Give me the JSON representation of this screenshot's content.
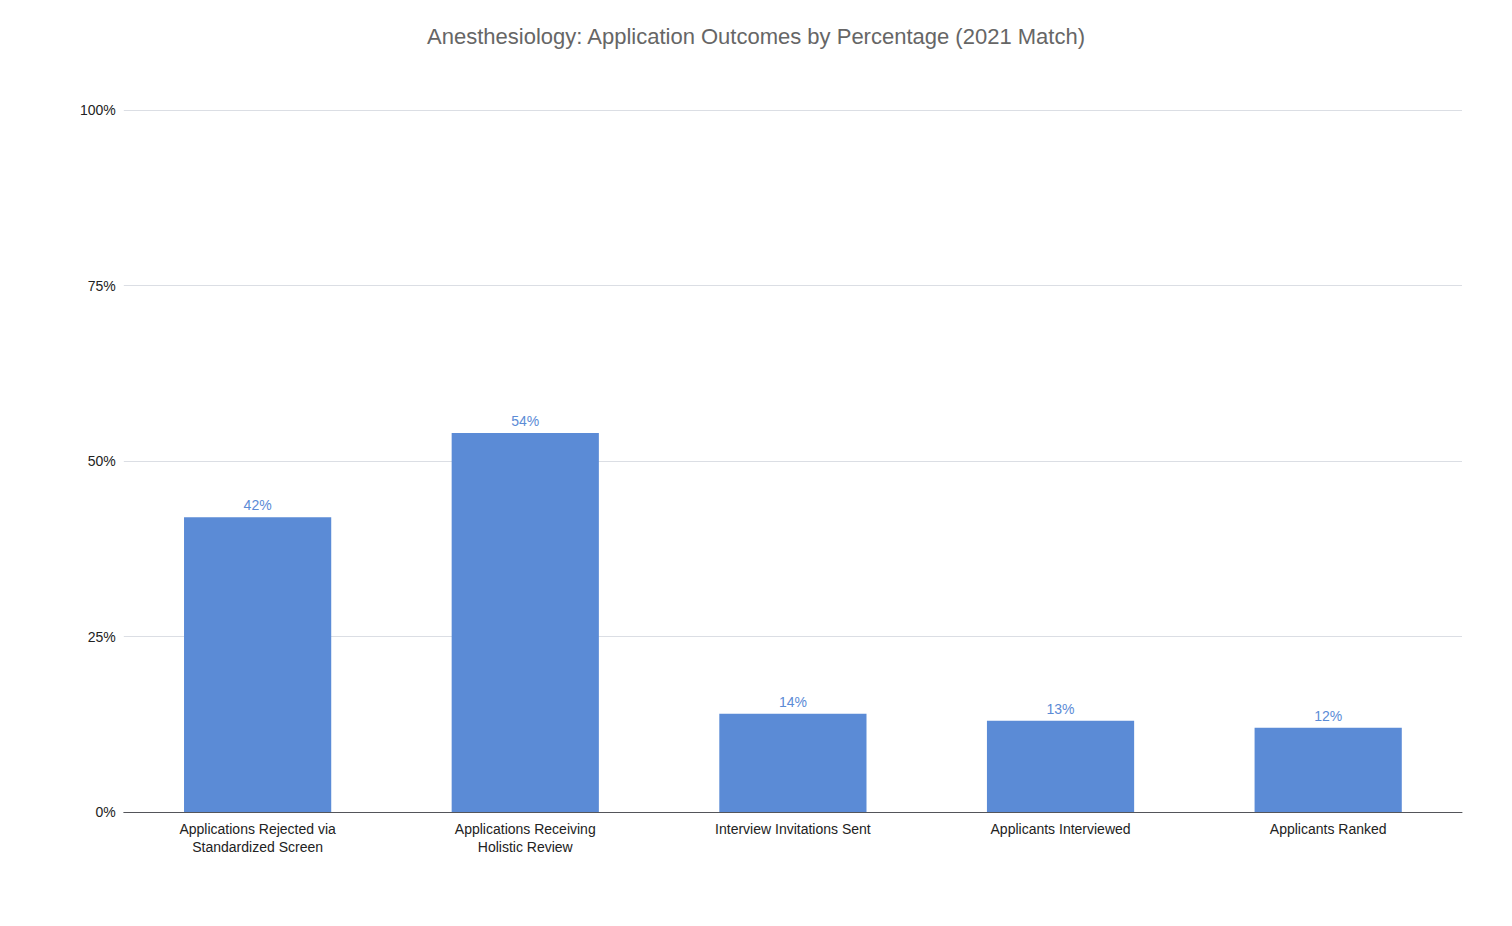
{
  "chart_data": {
    "type": "bar",
    "title": "Anesthesiology: Application Outcomes by Percentage (2021 Match)",
    "categories": [
      "Applications Rejected via\nStandardized Screen",
      "Applications Receiving\nHolistic Review",
      "Interview Invitations Sent",
      "Applicants Interviewed",
      "Applicants Ranked"
    ],
    "values": [
      42,
      54,
      14,
      13,
      12
    ],
    "value_labels": [
      "42%",
      "54%",
      "14%",
      "13%",
      "12%"
    ],
    "color": "#5B8BD6",
    "ylim": [
      0,
      100
    ],
    "yticks": [
      {
        "value": 0,
        "label": "0%"
      },
      {
        "value": 25,
        "label": "25%"
      },
      {
        "value": 50,
        "label": "50%"
      },
      {
        "value": 75,
        "label": "75%"
      },
      {
        "value": 100,
        "label": "100%"
      }
    ],
    "grid": true,
    "data_labels": true
  }
}
